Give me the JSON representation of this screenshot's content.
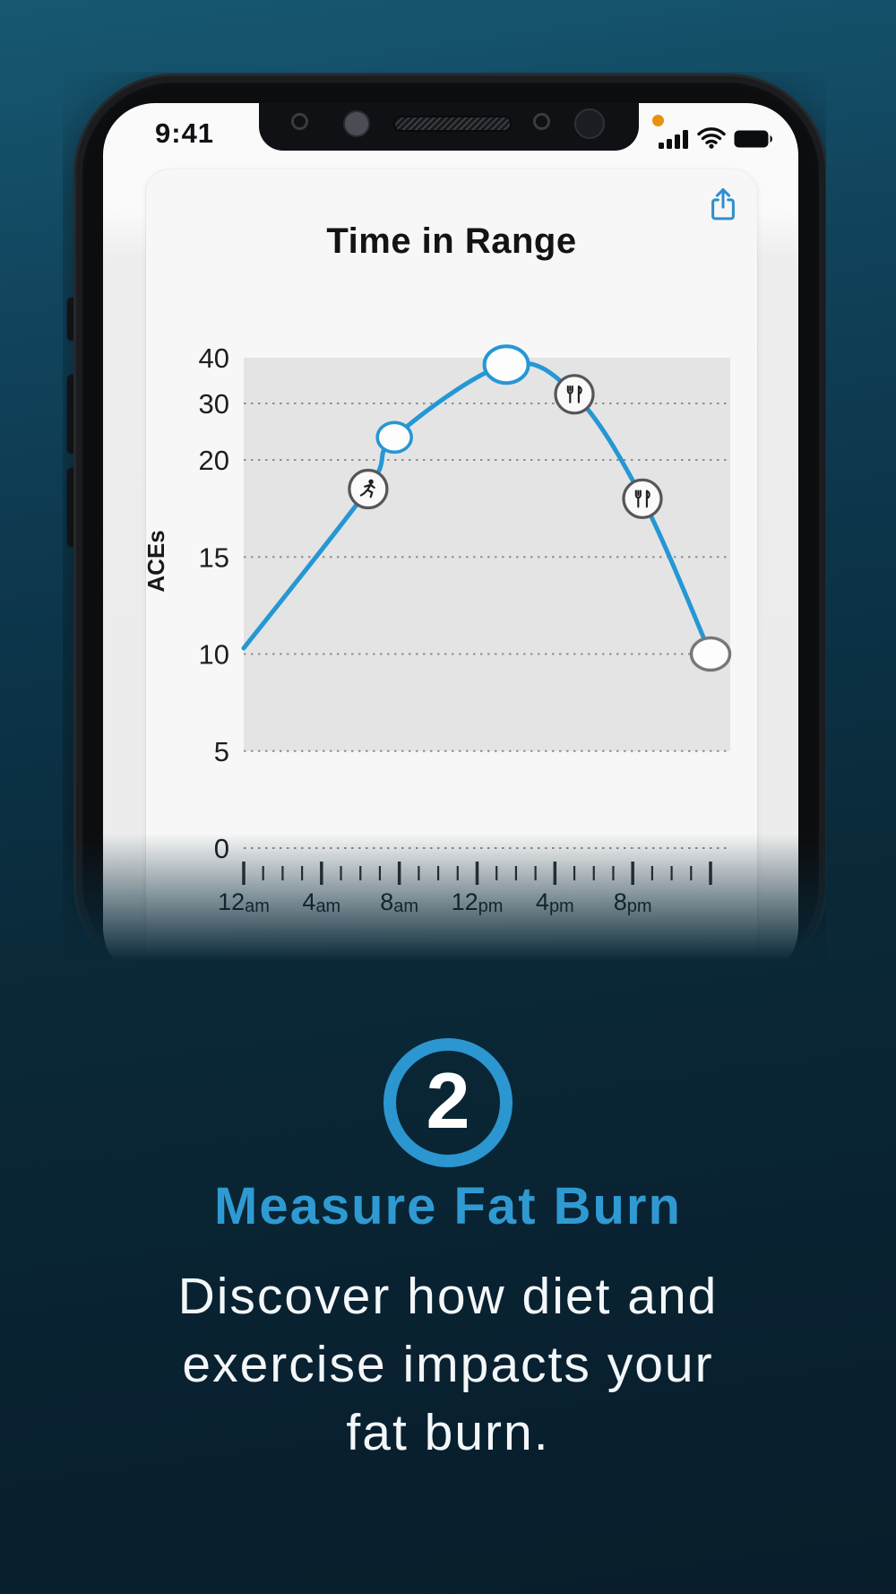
{
  "status_bar": {
    "time": "9:41",
    "icons": [
      "cellular-signal",
      "wifi",
      "battery"
    ],
    "recording_indicator_color": "#e8920c"
  },
  "chart_data": {
    "type": "line",
    "title": "Time in Range",
    "ylabel": "ACEs",
    "ylim": [
      0,
      40
    ],
    "y_ticks": [
      40,
      30,
      20,
      15,
      10,
      5,
      0
    ],
    "y_axis_note": "non-linear: compressed above 20",
    "grid": "dotted horizontal lines at 30,20,15,10,5,0; shaded band from 5 to 40",
    "x_range_hours": [
      0,
      24
    ],
    "x_ticks": [
      {
        "label": "12",
        "suffix": "am",
        "hour": 0
      },
      {
        "label": "4",
        "suffix": "am",
        "hour": 4
      },
      {
        "label": "8",
        "suffix": "am",
        "hour": 8
      },
      {
        "label": "12",
        "suffix": "pm",
        "hour": 12
      },
      {
        "label": "4",
        "suffix": "pm",
        "hour": 16
      },
      {
        "label": "8",
        "suffix": "pm",
        "hour": 20
      },
      {
        "label": "",
        "suffix": "",
        "hour": 24
      }
    ],
    "line_color": "#2597d4",
    "series": [
      {
        "name": "ACEs",
        "points": [
          {
            "hour": 0,
            "value": 10.3,
            "marker": "none"
          },
          {
            "hour": 6.4,
            "value": 18.5,
            "marker": "exercise"
          },
          {
            "hour": 7.75,
            "value": 24,
            "marker": "point"
          },
          {
            "hour": 13.5,
            "value": 38.5,
            "marker": "point-large"
          },
          {
            "hour": 17,
            "value": 32,
            "marker": "meal"
          },
          {
            "hour": 20.5,
            "value": 18,
            "marker": "meal"
          },
          {
            "hour": 24,
            "value": 10,
            "marker": "end"
          }
        ]
      }
    ],
    "marker_icons": {
      "exercise": "runner-icon",
      "meal": "fork-knife-icon"
    },
    "legend": "none"
  },
  "card": {
    "share_icon": "share-icon"
  },
  "step": {
    "number": "2",
    "heading": "Measure Fat Burn",
    "body_lines": [
      "Discover how diet and",
      "exercise impacts your",
      "fat burn."
    ]
  },
  "colors": {
    "accent_ring": "#2b96cf",
    "heading_blue": "#2f9ad2",
    "chart_line": "#2597d4",
    "share_icon_blue": "#2e8fd0",
    "background_top": "#175872",
    "background_bottom": "#081e2b",
    "notification_dot": "#e8920c"
  }
}
